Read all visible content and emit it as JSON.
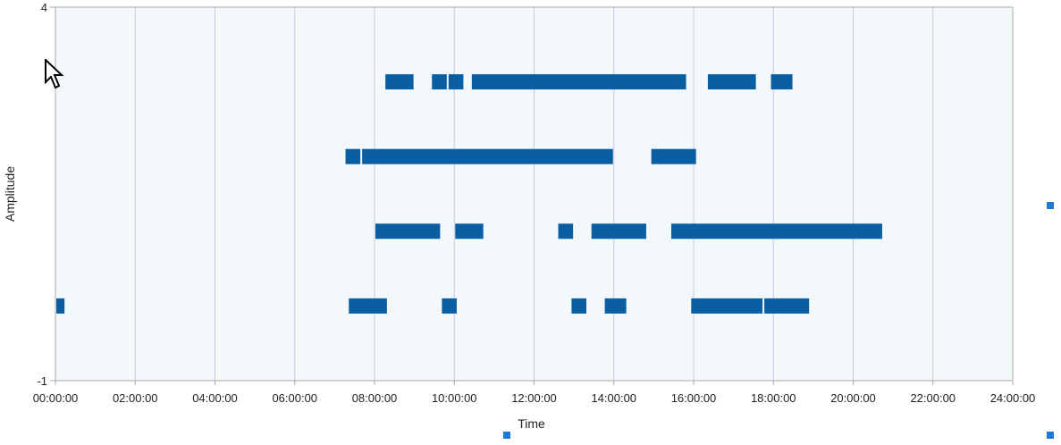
{
  "colors": {
    "plot_background": "#f3f8fa",
    "grid": "#c6c8e4",
    "bar": "#0a5fa3",
    "axis": "#a9a9a9",
    "handle": "#1c7ad4"
  },
  "chart_data": {
    "type": "bar",
    "subtype": "timeline",
    "xlabel": "Time",
    "ylabel": "Amplitude",
    "xlim_hours": [
      0,
      24
    ],
    "ylim": [
      -1,
      4
    ],
    "x_ticks": [
      "00:00:00",
      "02:00:00",
      "04:00:00",
      "06:00:00",
      "08:00:00",
      "10:00:00",
      "12:00:00",
      "14:00:00",
      "16:00:00",
      "18:00:00",
      "20:00:00",
      "22:00:00",
      "24:00:00"
    ],
    "y_ticks": [
      "4",
      "-1"
    ],
    "grid": "vertical",
    "tracks": [
      {
        "y": 3,
        "intervals": [
          [
            "08:15",
            "09:00"
          ],
          [
            "09:25",
            "09:50"
          ],
          [
            "09:50",
            "10:15"
          ],
          [
            "10:25",
            "15:50"
          ],
          [
            "16:20",
            "17:35"
          ],
          [
            "17:55",
            "18:30"
          ]
        ]
      },
      {
        "y": 2,
        "intervals": [
          [
            "07:15",
            "07:40"
          ],
          [
            "07:40",
            "14:00"
          ],
          [
            "14:55",
            "16:05"
          ]
        ]
      },
      {
        "y": 1,
        "intervals": [
          [
            "08:00",
            "09:40"
          ],
          [
            "10:00",
            "10:45"
          ],
          [
            "12:35",
            "13:00"
          ],
          [
            "13:25",
            "14:50"
          ],
          [
            "15:25",
            "20:45"
          ]
        ]
      },
      {
        "y": 0,
        "intervals": [
          [
            "00:00",
            "00:15"
          ],
          [
            "07:20",
            "08:20"
          ],
          [
            "09:40",
            "10:05"
          ],
          [
            "12:55",
            "13:20"
          ],
          [
            "13:45",
            "14:20"
          ],
          [
            "15:55",
            "17:45"
          ],
          [
            "17:45",
            "18:55"
          ]
        ]
      }
    ]
  }
}
